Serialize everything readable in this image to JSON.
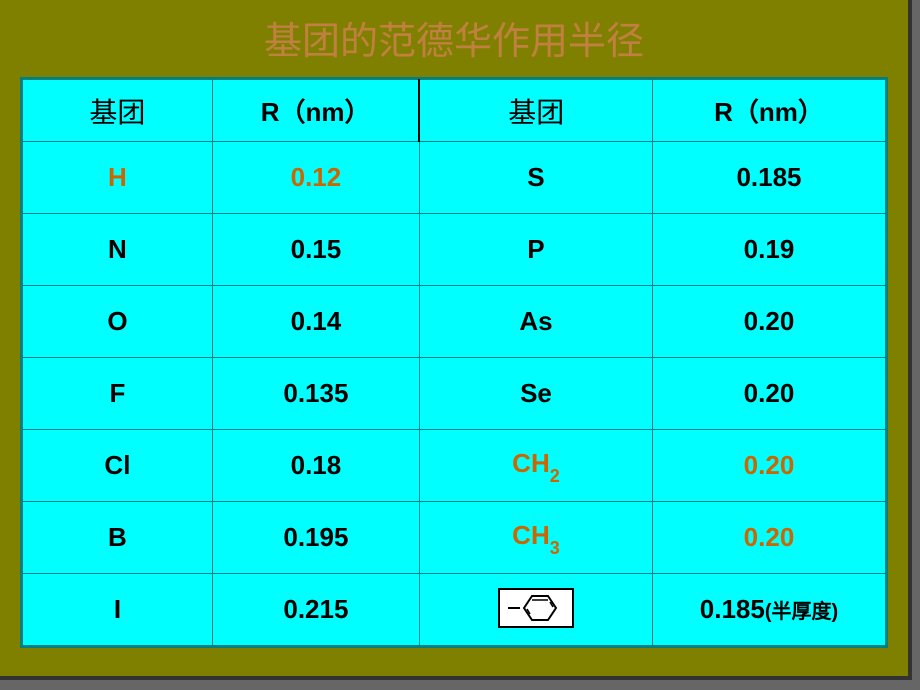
{
  "title": "基团的范德华作用半径",
  "colors": {
    "slide_bg": "#808000",
    "table_bg": "#00ffff",
    "border": "#008080",
    "title_color": "#c08040",
    "text_black": "#000000",
    "highlight": "#cc6600"
  },
  "headers": {
    "group1": "基团",
    "r1": "R（nm）",
    "group2": "基团",
    "r2": "R（nm）"
  },
  "rows": [
    {
      "g1": "H",
      "r1": "0.12",
      "g2": "S",
      "r2": "0.185",
      "g1_hl": true,
      "r1_hl": true,
      "g2_hl": false,
      "r2_hl": false,
      "g2_special": null,
      "r2_note": null
    },
    {
      "g1": "N",
      "r1": "0.15",
      "g2": "P",
      "r2": "0.19",
      "g1_hl": false,
      "r1_hl": false,
      "g2_hl": false,
      "r2_hl": false,
      "g2_special": null,
      "r2_note": null
    },
    {
      "g1": "O",
      "r1": "0.14",
      "g2": "As",
      "r2": "0.20",
      "g1_hl": false,
      "r1_hl": false,
      "g2_hl": false,
      "r2_hl": false,
      "g2_special": null,
      "r2_note": null
    },
    {
      "g1": "F",
      "r1": "0.135",
      "g2": "Se",
      "r2": "0.20",
      "g1_hl": false,
      "r1_hl": false,
      "g2_hl": false,
      "r2_hl": false,
      "g2_special": null,
      "r2_note": null
    },
    {
      "g1": "Cl",
      "r1": "0.18",
      "g2": "CH",
      "r2": "0.20",
      "g1_hl": false,
      "r1_hl": false,
      "g2_hl": true,
      "r2_hl": true,
      "g2_special": "sub2",
      "r2_note": null
    },
    {
      "g1": "B",
      "r1": "0.195",
      "g2": "CH",
      "r2": "0.20",
      "g1_hl": false,
      "r1_hl": false,
      "g2_hl": true,
      "r2_hl": true,
      "g2_special": "sub3",
      "r2_note": null
    },
    {
      "g1": "I",
      "r1": "0.215",
      "g2": "",
      "r2": "0.185",
      "g1_hl": false,
      "r1_hl": false,
      "g2_hl": false,
      "r2_hl": false,
      "g2_special": "benzene",
      "r2_note": "(半厚度)"
    }
  ],
  "subscripts": {
    "sub2": "2",
    "sub3": "3"
  }
}
